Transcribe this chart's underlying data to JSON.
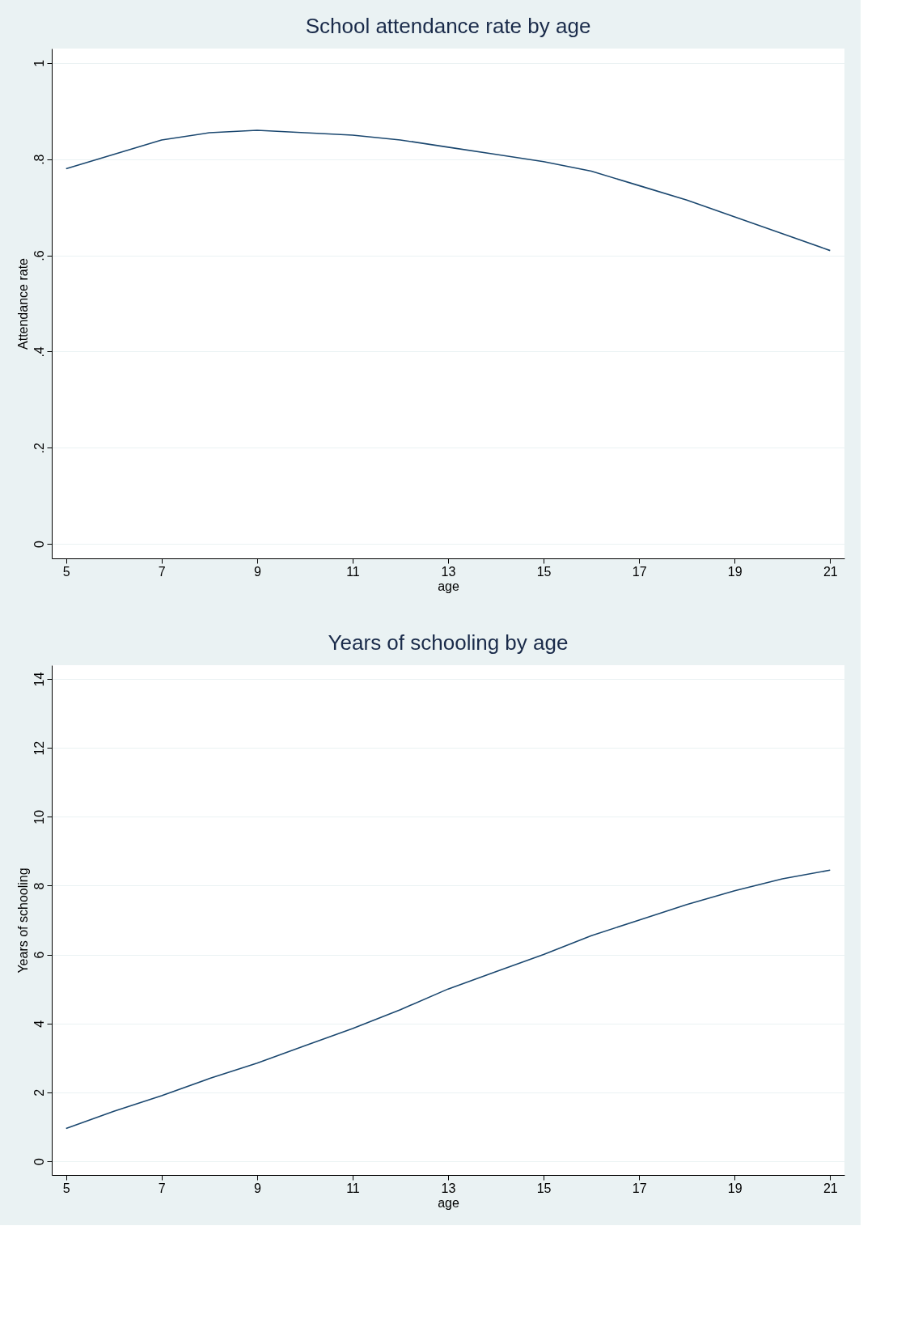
{
  "chart_data": [
    {
      "type": "line",
      "title": "School attendance rate by age",
      "xlabel": "age",
      "ylabel": "Attendance rate",
      "x": [
        5,
        6,
        7,
        8,
        9,
        10,
        11,
        12,
        13,
        14,
        15,
        16,
        17,
        18,
        19,
        20,
        21
      ],
      "series": [
        {
          "color": "#1a476f",
          "values": [
            0.78,
            0.81,
            0.84,
            0.855,
            0.86,
            0.855,
            0.85,
            0.84,
            0.825,
            0.81,
            0.795,
            0.775,
            0.745,
            0.715,
            0.68,
            0.645,
            0.61
          ]
        }
      ],
      "xlim": [
        4.7,
        21.3
      ],
      "xticks": [
        5,
        7,
        9,
        11,
        13,
        15,
        17,
        19,
        21
      ],
      "ylim": [
        -0.03,
        1.03
      ],
      "yticks": [
        0,
        {
          "value": 0.2,
          "label": ".2"
        },
        {
          "value": 0.4,
          "label": ".4"
        },
        {
          "value": 0.6,
          "label": ".6"
        },
        {
          "value": 0.8,
          "label": ".8"
        },
        1
      ],
      "grid": "y",
      "marker": "none",
      "line_style": "solid"
    },
    {
      "type": "line",
      "title": "Years of schooling by age",
      "xlabel": "age",
      "ylabel": "Years of schooling",
      "x": [
        5,
        6,
        7,
        8,
        9,
        10,
        11,
        12,
        13,
        14,
        15,
        16,
        17,
        18,
        19,
        20,
        21
      ],
      "series": [
        {
          "color": "#1a476f",
          "values": [
            0.95,
            1.45,
            1.9,
            2.4,
            2.85,
            3.35,
            3.85,
            4.4,
            5.0,
            5.5,
            6.0,
            6.55,
            7.0,
            7.45,
            7.85,
            8.2,
            8.45
          ]
        }
      ],
      "xlim": [
        4.7,
        21.3
      ],
      "xticks": [
        5,
        7,
        9,
        11,
        13,
        15,
        17,
        19,
        21
      ],
      "ylim": [
        -0.4,
        14.4
      ],
      "yticks": [
        0,
        2,
        4,
        6,
        8,
        10,
        12,
        14
      ],
      "grid": "y",
      "marker": "none",
      "line_style": "solid"
    }
  ]
}
